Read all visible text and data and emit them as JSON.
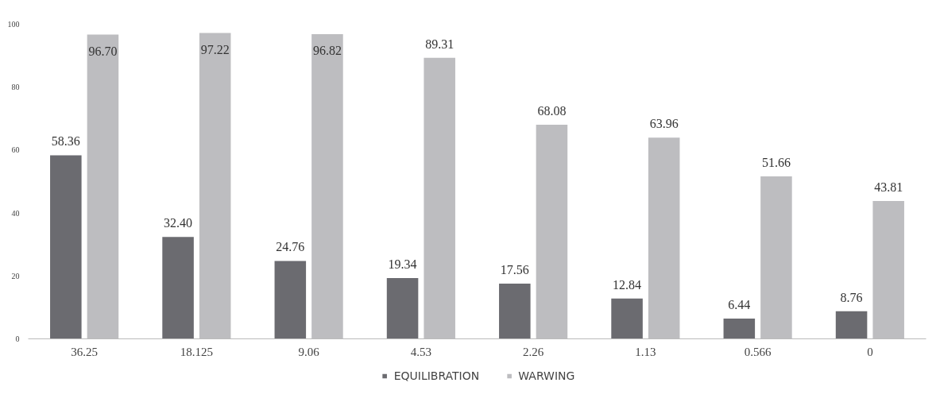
{
  "chart_data": {
    "type": "bar",
    "categories": [
      "36.25",
      "18.125",
      "9.06",
      "4.53",
      "2.26",
      "1.13",
      "0.566",
      "0"
    ],
    "series": [
      {
        "name": "EQUILIBRATION",
        "color": "#6b6b70",
        "values": [
          58.36,
          32.4,
          24.76,
          19.34,
          17.56,
          12.84,
          6.44,
          8.76
        ],
        "value_labels": [
          "58.36",
          "32.40",
          "24.76",
          "19.34",
          "17.56",
          "12.84",
          "6.44",
          "8.76"
        ]
      },
      {
        "name": "WARWING",
        "color": "#bdbdc0",
        "values": [
          96.7,
          97.22,
          96.82,
          89.31,
          68.08,
          63.96,
          51.66,
          43.81
        ],
        "value_labels": [
          "96.70",
          "97.22",
          "96.82",
          "89.31",
          "68.08",
          "63.96",
          "51.66",
          "43.81"
        ]
      }
    ],
    "ylim": [
      0,
      100
    ],
    "yticks": [
      0,
      20,
      40,
      60,
      80,
      100
    ],
    "grid": false,
    "legend": "bottom"
  }
}
